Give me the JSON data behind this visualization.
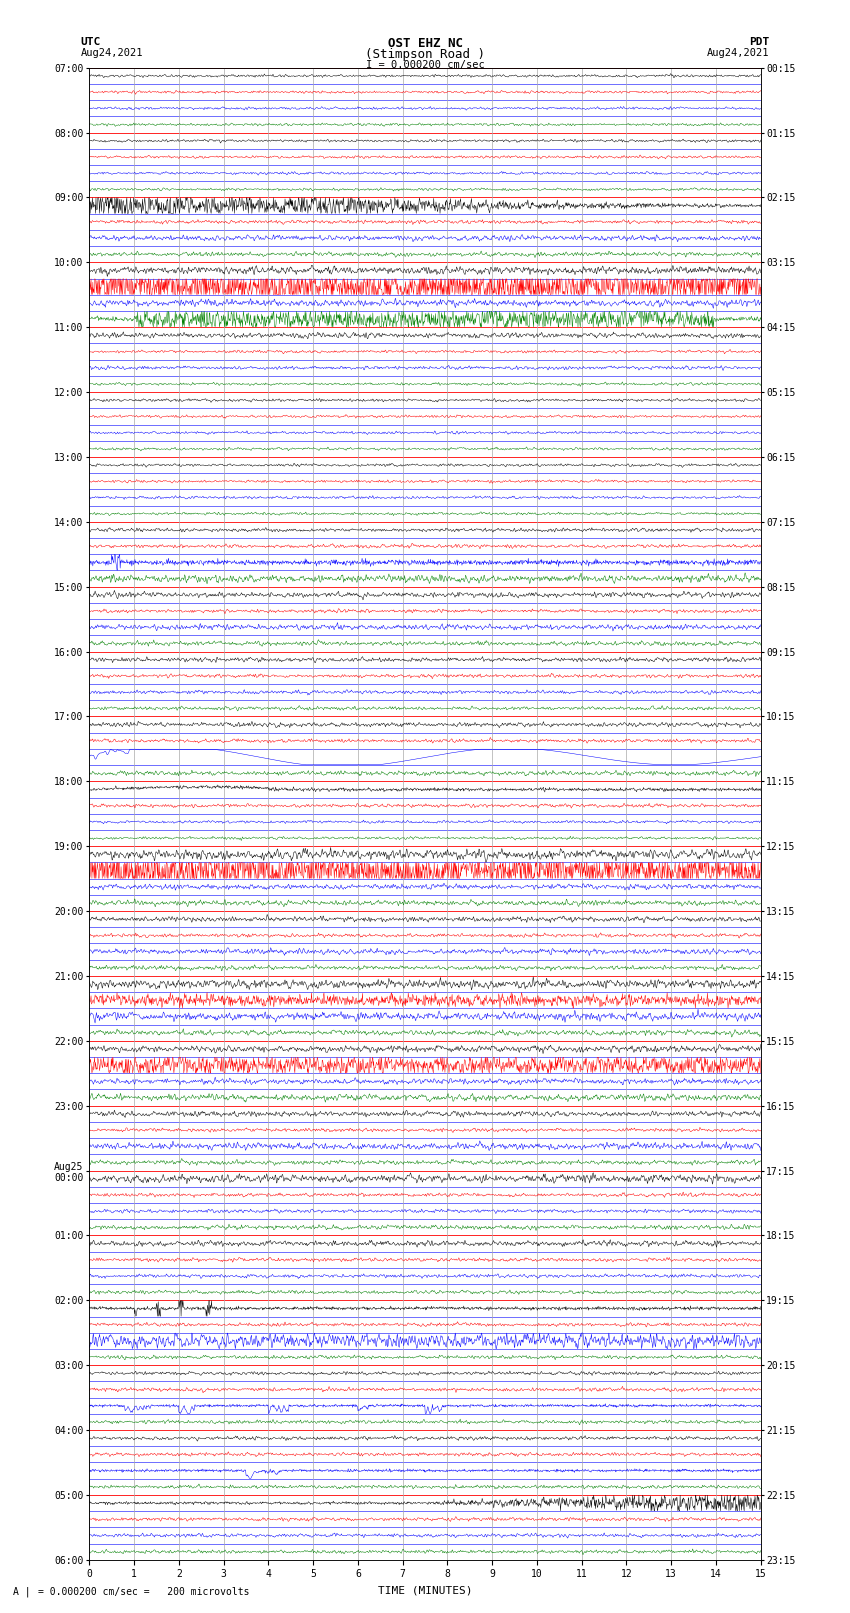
{
  "title_line1": "OST EHZ NC",
  "title_line2": "(Stimpson Road )",
  "title_line3": "I = 0.000200 cm/sec",
  "label_left_top": "UTC",
  "label_left_date": "Aug24,2021",
  "label_right_top": "PDT",
  "label_right_date": "Aug24,2021",
  "xlabel": "TIME (MINUTES)",
  "scale_label": "= 0.000200 cm/sec =   200 microvolts",
  "utc_labels": [
    "07:00",
    "08:00",
    "09:00",
    "10:00",
    "11:00",
    "12:00",
    "13:00",
    "14:00",
    "15:00",
    "16:00",
    "17:00",
    "18:00",
    "19:00",
    "20:00",
    "21:00",
    "22:00",
    "23:00",
    "Aug25\n00:00",
    "01:00",
    "02:00",
    "03:00",
    "04:00",
    "05:00",
    "06:00"
  ],
  "pdt_labels": [
    "00:15",
    "01:15",
    "02:15",
    "03:15",
    "04:15",
    "05:15",
    "06:15",
    "07:15",
    "08:15",
    "09:15",
    "10:15",
    "11:15",
    "12:15",
    "13:15",
    "14:15",
    "15:15",
    "16:15",
    "17:15",
    "18:15",
    "19:15",
    "20:15",
    "21:15",
    "22:15",
    "23:15"
  ],
  "n_rows": 92,
  "n_cols": 1500,
  "time_min": 0,
  "time_max": 15,
  "bg_color": "#ffffff",
  "grid_color_vertical": "#aaaaaa",
  "grid_color_hour": "#ff0000",
  "grid_color_15min": "#0000ff",
  "trace_colors": [
    "#000000",
    "#ff0000",
    "#0000ff",
    "#008000"
  ],
  "base_noise": 0.06,
  "title_fontsize": 9,
  "label_fontsize": 8,
  "tick_fontsize": 7,
  "scale_fontsize": 7
}
